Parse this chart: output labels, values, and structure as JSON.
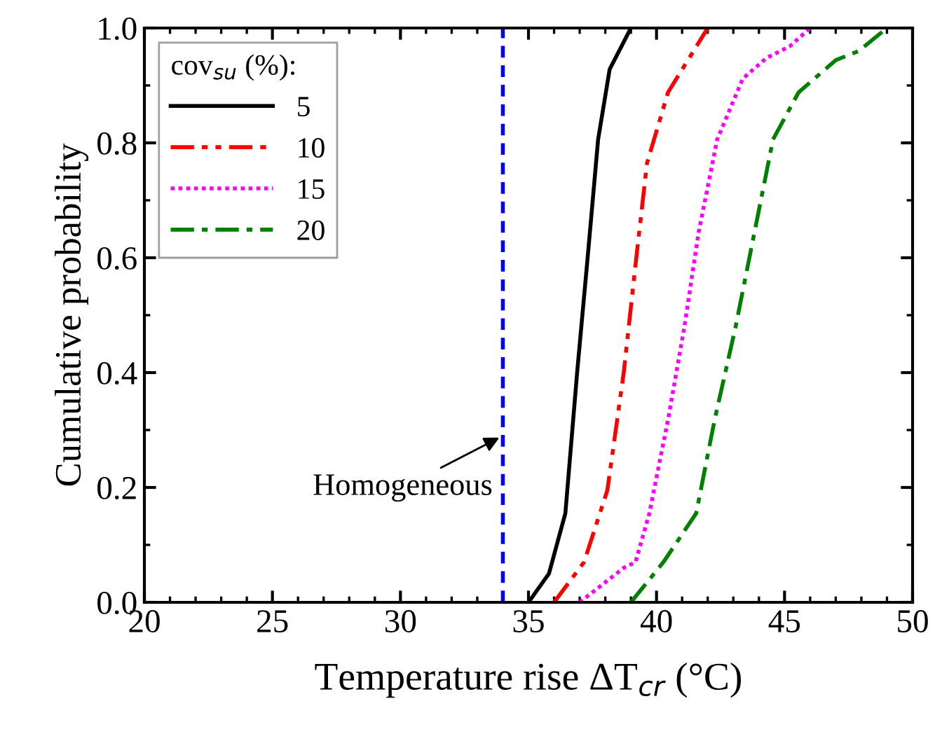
{
  "chart_data": {
    "type": "line",
    "xlabel": "Temperature rise ΔT$_{cr}$ (°C)",
    "ylabel": "Cumulative probability",
    "legend_title": "cov$_{su}$ (%):",
    "xlim": [
      20,
      50
    ],
    "xticks": [
      20,
      25,
      30,
      35,
      40,
      45,
      50
    ],
    "ylim": [
      0,
      1.0
    ],
    "yticks": [
      {
        "value": 0,
        "label": "0.0"
      },
      0.2,
      0.4,
      0.6,
      0.8,
      {
        "value": 1,
        "label": "1.0"
      }
    ],
    "grid": false,
    "legend": "top left",
    "marker": "none",
    "series": [
      {
        "name": "5",
        "color": "#000000",
        "line_style": "solid",
        "x": [
          35.0,
          35.8,
          36.44,
          36.9,
          37.31,
          37.72,
          38.17,
          39.0
        ],
        "values": [
          0,
          0.05,
          0.155,
          0.4,
          0.6,
          0.806,
          0.928,
          1.0
        ]
      },
      {
        "name": "10",
        "color": "#ff0000",
        "line_style": "dashdotdot",
        "x": [
          36.0,
          37.17,
          38.08,
          38.72,
          39.21,
          39.63,
          40.45,
          42.0
        ],
        "values": [
          0,
          0.07,
          0.195,
          0.4,
          0.6,
          0.765,
          0.888,
          1.0
        ]
      },
      {
        "name": "15",
        "color": "#ff00ff",
        "line_style": "dotted",
        "x": [
          37.0,
          38.72,
          39.18,
          39.72,
          40.45,
          41.09,
          41.64,
          42.37,
          43.37,
          44.3,
          45.2,
          46.0
        ],
        "values": [
          0,
          0.06,
          0.07,
          0.155,
          0.318,
          0.48,
          0.643,
          0.806,
          0.912,
          0.948,
          0.968,
          1.0
        ]
      },
      {
        "name": "20",
        "color": "#008000",
        "line_style": "dashdot",
        "x": [
          39.0,
          40.27,
          41.55,
          42.27,
          43.09,
          43.82,
          44.55,
          45.55,
          47.0,
          47.9,
          49.0
        ],
        "values": [
          0,
          0.07,
          0.155,
          0.318,
          0.48,
          0.643,
          0.806,
          0.888,
          0.944,
          0.96,
          1.0
        ]
      }
    ],
    "ref_lines": [
      {
        "axis": "x",
        "value": 34,
        "color": "#0000ff",
        "line_style": "dashed"
      }
    ],
    "annotations": [
      {
        "text": "Homogeneous",
        "x": 34,
        "y": 0.29
      }
    ]
  }
}
